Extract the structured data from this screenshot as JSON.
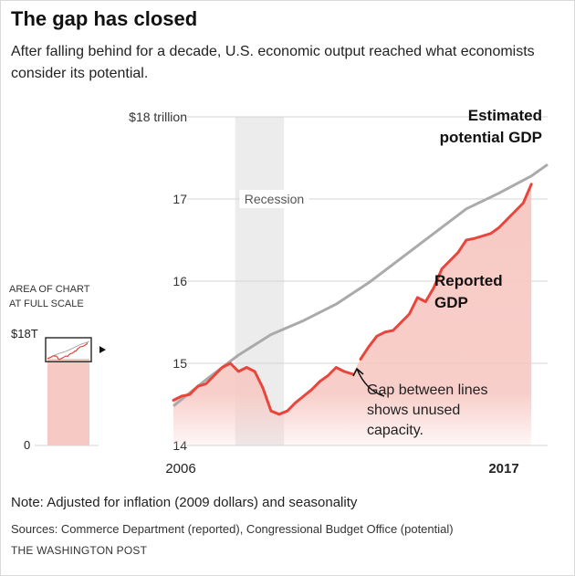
{
  "title": "The gap has closed",
  "subtitle": "After falling behind for a decade, U.S. economic output reached what economists consider its potential.",
  "note": "Note: Adjusted for inflation (2009 dollars) and seasonality",
  "sources": "Sources: Commerce Department (reported), Congressional Budget Office (potential)",
  "brand": "THE WASHINGTON POST",
  "colors": {
    "reported": "#e8463c",
    "reported_fill": "#f7c9c4",
    "potential": "#aaaaaa",
    "recession": "#ececec"
  },
  "chart_data": {
    "type": "line",
    "x_unit": "year",
    "xlim": [
      2006.0,
      2017.5
    ],
    "ylim": [
      14,
      18
    ],
    "yticks": [
      14,
      15,
      16,
      17,
      18
    ],
    "ytick_labels": [
      "14",
      "15",
      "16",
      "17",
      "$18 trillion"
    ],
    "xtick_labels": [
      {
        "x": 2006,
        "label": "2006"
      },
      {
        "x": 2017,
        "label": "2017"
      }
    ],
    "grid": true,
    "recession": {
      "label": "Recession",
      "start": 2007.9,
      "end": 2009.4
    },
    "series": [
      {
        "name": "Estimated potential GDP",
        "label_lines": [
          "Estimated",
          "potential GDP"
        ],
        "x": [
          2006.0,
          2007.0,
          2008.0,
          2009.0,
          2010.0,
          2011.0,
          2012.0,
          2013.0,
          2014.0,
          2015.0,
          2016.0,
          2017.0,
          2017.5
        ],
        "y": [
          14.48,
          14.8,
          15.1,
          15.35,
          15.52,
          15.72,
          15.98,
          16.28,
          16.58,
          16.88,
          17.07,
          17.28,
          17.42
        ]
      },
      {
        "name": "Reported GDP",
        "label_lines": [
          "Reported",
          "GDP"
        ],
        "segments": [
          {
            "x": [
              2006.0,
              2006.25,
              2006.5,
              2006.75,
              2007.0,
              2007.25,
              2007.5,
              2007.75,
              2008.0,
              2008.25,
              2008.5,
              2008.75,
              2009.0,
              2009.25,
              2009.5,
              2009.75,
              2010.0,
              2010.25,
              2010.5,
              2010.75,
              2011.0,
              2011.25,
              2011.5
            ],
            "y": [
              14.55,
              14.6,
              14.62,
              14.72,
              14.75,
              14.85,
              14.95,
              15.0,
              14.9,
              14.95,
              14.9,
              14.7,
              14.42,
              14.38,
              14.42,
              14.52,
              14.6,
              14.68,
              14.78,
              14.85,
              14.95,
              14.9,
              14.87
            ]
          },
          {
            "x": [
              2011.75,
              2012.0,
              2012.25,
              2012.5,
              2012.75,
              2013.0,
              2013.25,
              2013.5,
              2013.75,
              2014.0,
              2014.25,
              2014.5,
              2014.75,
              2015.0,
              2015.25,
              2015.5,
              2015.75,
              2016.0,
              2016.25,
              2016.5,
              2016.75,
              2017.0
            ],
            "y": [
              15.05,
              15.2,
              15.33,
              15.38,
              15.4,
              15.5,
              15.6,
              15.8,
              15.75,
              15.92,
              16.15,
              16.25,
              16.35,
              16.5,
              16.52,
              16.55,
              16.58,
              16.65,
              16.75,
              16.85,
              16.95,
              17.18
            ]
          }
        ]
      }
    ],
    "annotation": {
      "text_lines": [
        "Gap between lines",
        "shows unused",
        "capacity."
      ],
      "x": 2011.75,
      "y": 15.0
    },
    "inset": {
      "title_lines": [
        "AREA OF CHART",
        "AT FULL SCALE"
      ],
      "top_label": "$18T",
      "bottom_label": "0",
      "ylim": [
        0,
        18
      ]
    }
  }
}
